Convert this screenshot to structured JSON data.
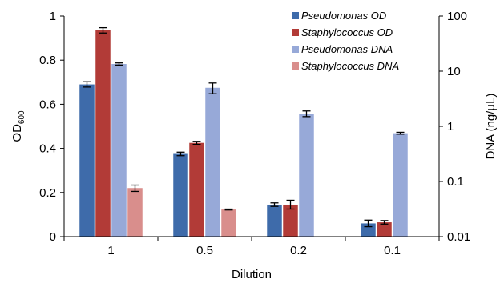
{
  "chart_data": {
    "type": "bar",
    "categories": [
      "1",
      "0.5",
      "0.2",
      "0.1"
    ],
    "xlabel": "Dilution",
    "ylabel_left": {
      "main": "OD",
      "sub": "600"
    },
    "ylabel_right": "DNA (ng/µL)",
    "left_axis": {
      "min": 0,
      "max": 1,
      "ticks": [
        0,
        0.2,
        0.4,
        0.6,
        0.8,
        1
      ],
      "tick_labels": [
        "0",
        "0.2",
        "0.4",
        "0.6",
        "0.8",
        "1"
      ]
    },
    "right_axis": {
      "scale": "log",
      "min": 0.01,
      "max": 100,
      "ticks": [
        0.01,
        0.1,
        1,
        10,
        100
      ],
      "tick_labels": [
        "0.01",
        "0.1",
        "1",
        "10",
        "100"
      ]
    },
    "legend_position": "top-right",
    "series": [
      {
        "name": "Pseudomonas OD",
        "axis": "left",
        "color": "#3E6BAA",
        "values": [
          0.69,
          0.375,
          0.145,
          0.06
        ],
        "errors": [
          0.012,
          0.008,
          0.008,
          0.015
        ]
      },
      {
        "name": "Staphylococcus OD",
        "axis": "left",
        "color": "#B23B37",
        "values": [
          0.935,
          0.425,
          0.145,
          0.065
        ],
        "errors": [
          0.012,
          0.007,
          0.02,
          0.008
        ]
      },
      {
        "name": "Pseudomonas DNA",
        "axis": "right",
        "color": "#97A9D8",
        "values": [
          13.5,
          5.0,
          1.7,
          0.75
        ],
        "errors": [
          0.6,
          1.1,
          0.2,
          0.03
        ]
      },
      {
        "name": "Staphylococcus DNA",
        "axis": "right",
        "color": "#D98E8C",
        "values": [
          0.076,
          0.031,
          null,
          null
        ],
        "errors": [
          0.01,
          0.0006,
          null,
          null
        ]
      }
    ]
  }
}
